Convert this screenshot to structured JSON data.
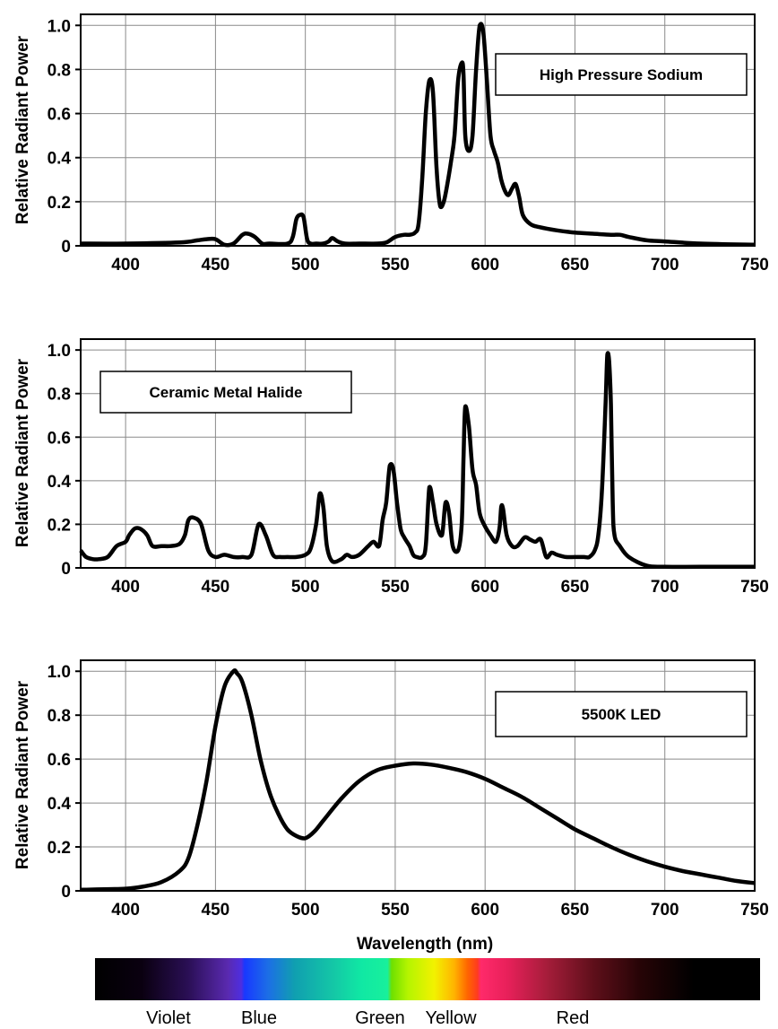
{
  "chart_data": [
    {
      "type": "line",
      "legend": "High Pressure Sodium",
      "legend_placement": "top-right",
      "ylabel": "Relative Radiant Power",
      "xlabel": "",
      "xlim": [
        375,
        750
      ],
      "ylim": [
        0,
        1.05
      ],
      "xticks": [
        400,
        450,
        500,
        550,
        600,
        650,
        700,
        750
      ],
      "yticks": [
        0,
        0.2,
        0.4,
        0.6,
        0.8,
        1.0
      ],
      "ytick_labels": [
        "0",
        "0.2",
        "0.4",
        "0.6",
        "0.8",
        "1.0"
      ],
      "grid": true,
      "series": [
        {
          "x": [
            375,
            400,
            430,
            440,
            445,
            450,
            455,
            460,
            465,
            468,
            472,
            476,
            480,
            490,
            493,
            495,
            497,
            499,
            501,
            503,
            506,
            510,
            513,
            515,
            518,
            522,
            530,
            540,
            545,
            550,
            555,
            558,
            561,
            563,
            565,
            567,
            569,
            571,
            573,
            575,
            577,
            579,
            581,
            583,
            585,
            587,
            588,
            589,
            591,
            593,
            595,
            597,
            599,
            601,
            603,
            605,
            607,
            609,
            611,
            613,
            615,
            617,
            619,
            621,
            625,
            630,
            640,
            650,
            660,
            670,
            675,
            680,
            690,
            700,
            720,
            750
          ],
          "y": [
            0.01,
            0.01,
            0.015,
            0.025,
            0.03,
            0.03,
            0.005,
            0.01,
            0.05,
            0.055,
            0.04,
            0.01,
            0.01,
            0.01,
            0.04,
            0.12,
            0.14,
            0.13,
            0.03,
            0.01,
            0.01,
            0.01,
            0.02,
            0.035,
            0.02,
            0.01,
            0.01,
            0.01,
            0.015,
            0.04,
            0.05,
            0.05,
            0.06,
            0.1,
            0.3,
            0.6,
            0.75,
            0.7,
            0.35,
            0.18,
            0.2,
            0.28,
            0.38,
            0.5,
            0.75,
            0.83,
            0.78,
            0.5,
            0.43,
            0.5,
            0.8,
            1.0,
            0.97,
            0.75,
            0.5,
            0.43,
            0.38,
            0.3,
            0.25,
            0.23,
            0.26,
            0.28,
            0.22,
            0.14,
            0.1,
            0.085,
            0.07,
            0.06,
            0.055,
            0.05,
            0.05,
            0.04,
            0.025,
            0.02,
            0.01,
            0.005
          ]
        }
      ]
    },
    {
      "type": "line",
      "legend": "Ceramic Metal Halide",
      "legend_placement": "top-left",
      "ylabel": "Relative Radiant Power",
      "xlabel": "",
      "xlim": [
        375,
        750
      ],
      "ylim": [
        0,
        1.05
      ],
      "xticks": [
        400,
        450,
        500,
        550,
        600,
        650,
        700,
        750
      ],
      "yticks": [
        0,
        0.2,
        0.4,
        0.6,
        0.8,
        1.0
      ],
      "ytick_labels": [
        "0",
        "0.2",
        "0.4",
        "0.6",
        "0.8",
        "1.0"
      ],
      "grid": true,
      "series": [
        {
          "x": [
            375,
            378,
            382,
            385,
            390,
            395,
            400,
            402,
            405,
            408,
            412,
            415,
            420,
            425,
            430,
            433,
            435,
            438,
            442,
            446,
            450,
            455,
            460,
            465,
            470,
            474,
            478,
            482,
            486,
            490,
            495,
            500,
            503,
            506,
            508,
            510,
            512,
            515,
            520,
            523,
            526,
            530,
            535,
            538,
            541,
            543,
            545,
            547,
            549,
            551,
            553,
            555,
            558,
            560,
            562,
            565,
            567,
            569,
            571,
            573,
            576,
            578,
            580,
            582,
            585,
            587,
            588,
            589,
            591,
            593,
            595,
            597,
            600,
            603,
            606,
            608,
            609,
            610,
            612,
            615,
            618,
            622,
            625,
            628,
            631,
            634,
            637,
            640,
            645,
            650,
            655,
            658,
            661,
            663,
            665,
            667,
            668,
            669,
            670,
            671,
            672,
            675,
            680,
            690,
            700,
            720,
            750
          ],
          "y": [
            0.08,
            0.05,
            0.04,
            0.04,
            0.05,
            0.1,
            0.12,
            0.15,
            0.18,
            0.18,
            0.15,
            0.1,
            0.1,
            0.1,
            0.11,
            0.15,
            0.22,
            0.23,
            0.2,
            0.08,
            0.05,
            0.06,
            0.05,
            0.05,
            0.06,
            0.2,
            0.15,
            0.06,
            0.05,
            0.05,
            0.05,
            0.06,
            0.09,
            0.2,
            0.34,
            0.28,
            0.1,
            0.03,
            0.04,
            0.06,
            0.05,
            0.06,
            0.1,
            0.12,
            0.1,
            0.22,
            0.3,
            0.47,
            0.45,
            0.3,
            0.18,
            0.14,
            0.1,
            0.06,
            0.05,
            0.05,
            0.1,
            0.37,
            0.3,
            0.2,
            0.15,
            0.3,
            0.25,
            0.1,
            0.08,
            0.2,
            0.5,
            0.74,
            0.65,
            0.45,
            0.38,
            0.25,
            0.19,
            0.15,
            0.12,
            0.18,
            0.28,
            0.27,
            0.15,
            0.1,
            0.1,
            0.14,
            0.13,
            0.12,
            0.13,
            0.05,
            0.07,
            0.06,
            0.05,
            0.05,
            0.05,
            0.05,
            0.08,
            0.15,
            0.35,
            0.75,
            0.98,
            0.95,
            0.75,
            0.3,
            0.15,
            0.1,
            0.05,
            0.01,
            0.005,
            0.005,
            0.005
          ]
        }
      ]
    },
    {
      "type": "line",
      "legend": "5500K LED",
      "legend_placement": "top-right",
      "ylabel": "Relative Radiant Power",
      "xlabel": "Wavelength (nm)",
      "xlim": [
        375,
        750
      ],
      "ylim": [
        0,
        1.05
      ],
      "xticks": [
        400,
        450,
        500,
        550,
        600,
        650,
        700,
        750
      ],
      "yticks": [
        0,
        0.2,
        0.4,
        0.6,
        0.8,
        1.0
      ],
      "ytick_labels": [
        "0",
        "0.2",
        "0.4",
        "0.6",
        "0.8",
        "1.0"
      ],
      "grid": true,
      "series": [
        {
          "x": [
            375,
            400,
            410,
            420,
            430,
            435,
            440,
            445,
            450,
            455,
            460,
            462,
            465,
            470,
            475,
            480,
            485,
            490,
            495,
            500,
            505,
            510,
            520,
            530,
            540,
            550,
            560,
            570,
            580,
            590,
            600,
            610,
            620,
            630,
            640,
            650,
            660,
            670,
            680,
            690,
            700,
            710,
            720,
            730,
            740,
            750
          ],
          "y": [
            0.005,
            0.01,
            0.02,
            0.04,
            0.09,
            0.15,
            0.3,
            0.5,
            0.75,
            0.93,
            1.0,
            0.99,
            0.95,
            0.8,
            0.6,
            0.45,
            0.35,
            0.28,
            0.25,
            0.24,
            0.27,
            0.32,
            0.42,
            0.5,
            0.55,
            0.57,
            0.58,
            0.575,
            0.56,
            0.54,
            0.51,
            0.47,
            0.43,
            0.38,
            0.33,
            0.28,
            0.24,
            0.2,
            0.165,
            0.135,
            0.11,
            0.09,
            0.075,
            0.06,
            0.045,
            0.035
          ]
        }
      ]
    }
  ],
  "spectrum_band": {
    "labels": [
      "Violet",
      "Blue",
      "Green",
      "Yellow",
      "Red"
    ]
  }
}
